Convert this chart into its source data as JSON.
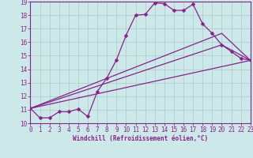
{
  "xlabel": "Windchill (Refroidissement éolien,°C)",
  "bg_color": "#cce8e8",
  "line_color": "#882288",
  "grid_color": "#aacccc",
  "xlim": [
    0,
    23
  ],
  "ylim": [
    10,
    19
  ],
  "xticks": [
    0,
    1,
    2,
    3,
    4,
    5,
    6,
    7,
    8,
    9,
    10,
    11,
    12,
    13,
    14,
    15,
    16,
    17,
    18,
    19,
    20,
    21,
    22,
    23
  ],
  "yticks": [
    10,
    11,
    12,
    13,
    14,
    15,
    16,
    17,
    18,
    19
  ],
  "main_x": [
    0,
    1,
    2,
    3,
    4,
    5,
    6,
    7,
    8,
    9,
    10,
    11,
    12,
    13,
    14,
    15,
    16,
    17,
    18,
    19,
    20,
    21,
    22,
    23
  ],
  "main_y": [
    11.1,
    10.4,
    10.4,
    10.85,
    10.85,
    11.05,
    10.5,
    12.35,
    13.35,
    14.7,
    16.5,
    18.0,
    18.05,
    18.9,
    18.85,
    18.35,
    18.35,
    18.8,
    17.35,
    16.65,
    15.8,
    15.3,
    14.8,
    14.65
  ],
  "line2_x": [
    0,
    23
  ],
  "line2_y": [
    11.1,
    14.65
  ],
  "line3_x": [
    0,
    20,
    23
  ],
  "line3_y": [
    11.1,
    15.8,
    14.65
  ],
  "line4_x": [
    0,
    20,
    23
  ],
  "line4_y": [
    11.1,
    16.65,
    14.65
  ],
  "markersize": 2.5,
  "linewidth": 0.9,
  "tick_fontsize": 5.5,
  "xlabel_fontsize": 5.5
}
